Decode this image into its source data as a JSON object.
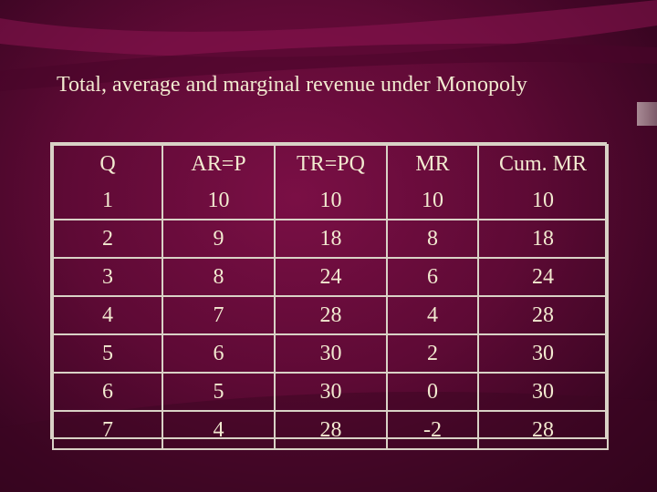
{
  "title": "Total, average and marginal revenue under Monopoly",
  "table": {
    "headers": [
      "Q",
      "AR=P",
      "TR=PQ",
      "MR",
      "Cum. MR"
    ],
    "rows": [
      [
        "1",
        "10",
        "10",
        "10",
        "10"
      ],
      [
        "2",
        "9",
        "18",
        "8",
        "18"
      ],
      [
        "3",
        "8",
        "24",
        "6",
        "24"
      ],
      [
        "4",
        "7",
        "28",
        "4",
        "28"
      ],
      [
        "5",
        "6",
        "30",
        "2",
        "30"
      ],
      [
        "6",
        "5",
        "30",
        "0",
        "30"
      ],
      [
        "7",
        "4",
        "28",
        "-2",
        "28"
      ]
    ]
  },
  "colors": {
    "background": "#5e0a35",
    "text": "#f2ead0",
    "grid": "#d9d2c6"
  }
}
